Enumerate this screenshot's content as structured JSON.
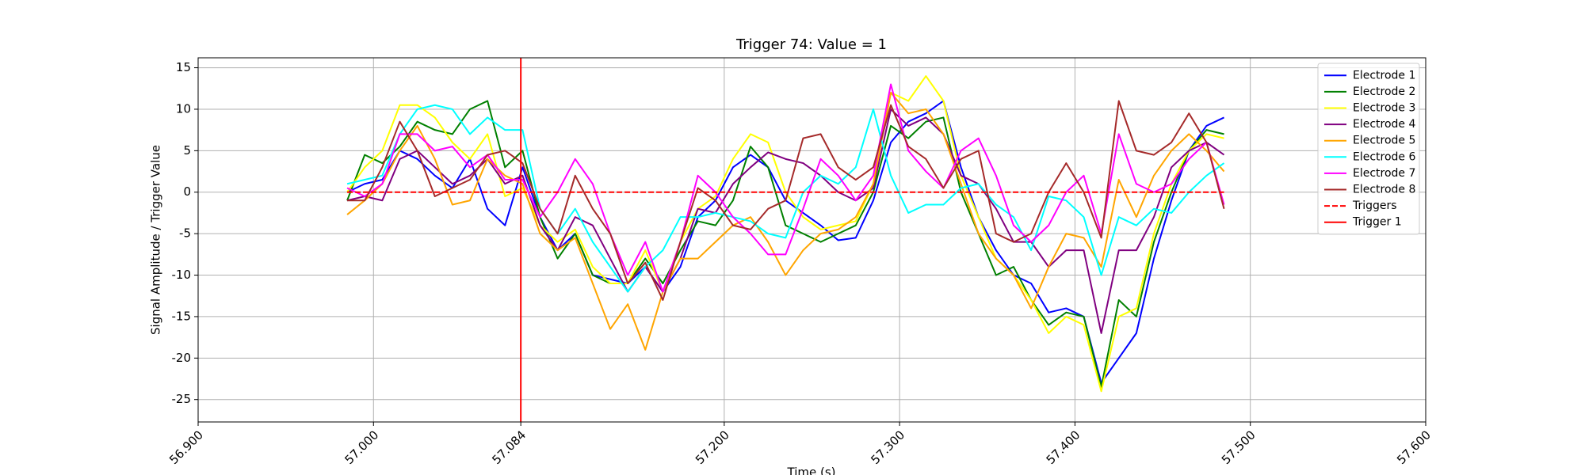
{
  "chart_data": {
    "type": "line",
    "title": "Trigger 74: Value = 1",
    "xlabel": "Time (s)",
    "ylabel": "Signal Amplitude / Trigger Value",
    "x": [
      56.985,
      56.995,
      57.005,
      57.015,
      57.025,
      57.035,
      57.045,
      57.055,
      57.065,
      57.075,
      57.085,
      57.095,
      57.105,
      57.115,
      57.125,
      57.135,
      57.145,
      57.155,
      57.165,
      57.175,
      57.185,
      57.195,
      57.205,
      57.215,
      57.225,
      57.235,
      57.245,
      57.255,
      57.265,
      57.275,
      57.285,
      57.295,
      57.305,
      57.315,
      57.325,
      57.335,
      57.345,
      57.355,
      57.365,
      57.375,
      57.385,
      57.395,
      57.405,
      57.415,
      57.425,
      57.435,
      57.445,
      57.455,
      57.465,
      57.475,
      57.485
    ],
    "series": [
      {
        "name": "Electrode 1",
        "color": "#0000ff",
        "values": [
          0,
          1,
          1.5,
          5,
          4,
          2,
          0.5,
          4,
          -2,
          -4,
          3,
          -3,
          -7,
          -5,
          -10,
          -10.5,
          -11,
          -9,
          -12,
          -9,
          -3,
          -1,
          3,
          4.5,
          3,
          -1,
          -2.5,
          -4,
          -5.8,
          -5.5,
          -1,
          6,
          8.5,
          9.5,
          11,
          3,
          -3,
          -7,
          -10,
          -11,
          -14.5,
          -14,
          -15,
          -23,
          -20,
          -17,
          -8,
          -1,
          5,
          8,
          9
        ]
      },
      {
        "name": "Electrode 2",
        "color": "#008000",
        "values": [
          -1,
          4.5,
          3.5,
          5.5,
          8.5,
          7.5,
          7,
          10,
          11,
          3,
          5,
          -3,
          -8,
          -5,
          -10,
          -11,
          -11,
          -8,
          -11,
          -7,
          -3.5,
          -4,
          -1,
          5.5,
          3,
          -4,
          -5,
          -6,
          -5,
          -4,
          0,
          8,
          6.5,
          8.5,
          9,
          0,
          -5,
          -10,
          -9,
          -13,
          -16,
          -14.5,
          -15,
          -23.5,
          -13,
          -15,
          -6,
          0,
          5,
          7.5,
          7
        ]
      },
      {
        "name": "Electrode 3",
        "color": "#ffff00",
        "values": [
          0,
          3,
          5,
          10.5,
          10.5,
          9,
          6,
          4,
          7,
          -0.5,
          0.5,
          -4,
          -6,
          -4.5,
          -9,
          -11,
          -11,
          -7,
          -12,
          -6,
          -2,
          -0.5,
          4,
          7,
          6,
          0,
          -3,
          -4.5,
          -4,
          -3.5,
          1,
          12,
          11,
          14,
          11,
          2,
          -3,
          -8,
          -10,
          -13,
          -17,
          -15,
          -16,
          -24,
          -15,
          -14,
          -5,
          1,
          5,
          7,
          6.5
        ]
      },
      {
        "name": "Electrode 4",
        "color": "#800080",
        "values": [
          -1,
          -0.5,
          -1,
          4,
          5,
          3,
          1,
          2,
          4,
          1,
          2,
          -4,
          -7,
          -3,
          -4,
          -8,
          -12,
          -9,
          -12,
          -8,
          -2,
          -2.5,
          1,
          3,
          4.8,
          4,
          3.5,
          2,
          0,
          -1,
          0.5,
          10,
          8,
          9,
          7,
          2,
          1,
          -2,
          -6,
          -6,
          -9,
          -7,
          -7,
          -17,
          -7,
          -7,
          -3,
          3,
          5,
          6,
          4.5
        ]
      },
      {
        "name": "Electrode 5",
        "color": "#ffa500",
        "values": [
          -2.7,
          -1,
          1,
          5,
          8,
          4,
          -1.5,
          -1,
          4,
          2,
          1,
          -5,
          -7,
          -5.5,
          -11,
          -16.5,
          -13.5,
          -19,
          -12,
          -8,
          -8,
          -6,
          -4,
          -3,
          -6,
          -10,
          -7,
          -5,
          -4.5,
          -3,
          1,
          12,
          9.5,
          10,
          7,
          1,
          -5,
          -8,
          -10,
          -14,
          -9,
          -5,
          -5.5,
          -9,
          1.5,
          -3,
          2,
          5,
          7,
          5,
          2.5
        ]
      },
      {
        "name": "Electrode 6",
        "color": "#00ffff",
        "values": [
          1,
          1.5,
          2,
          7,
          10,
          10.5,
          10,
          7,
          9,
          7.5,
          7.5,
          -2,
          -5,
          -2,
          -6,
          -9,
          -12,
          -9,
          -7,
          -3,
          -3,
          -2.5,
          -3,
          -3.5,
          -5,
          -5.5,
          0,
          2,
          1,
          3,
          10,
          2,
          -2.5,
          -1.5,
          -1.5,
          0.5,
          1,
          -1.5,
          -3,
          -7,
          -0.5,
          -1,
          -3,
          -10,
          -3,
          -4,
          -2,
          -2.5,
          0,
          2,
          3.5
        ]
      },
      {
        "name": "Electrode 7",
        "color": "#ff00ff",
        "values": [
          0.5,
          -0.5,
          1,
          7,
          7,
          5,
          5.5,
          3,
          4.5,
          1.5,
          1.5,
          -3,
          0,
          4,
          1,
          -5,
          -10,
          -6,
          -12,
          -6,
          2,
          0,
          -3,
          -5,
          -7.5,
          -7.5,
          -2,
          4,
          2,
          -1,
          2,
          13,
          5,
          2.5,
          0.5,
          5,
          6.5,
          2,
          -4,
          -6,
          -4,
          0,
          2,
          -5,
          7,
          1,
          0,
          1,
          4,
          6,
          -1.5
        ]
      },
      {
        "name": "Electrode 8",
        "color": "#a52a2a",
        "values": [
          -1,
          -1,
          3,
          8.5,
          5,
          -0.5,
          0.5,
          1.5,
          4.5,
          5,
          3.5,
          -2,
          -5,
          2,
          -2,
          -5,
          -11,
          -8.5,
          -13,
          -6,
          0.5,
          -1,
          -4,
          -4.5,
          -2,
          -1,
          6.5,
          7,
          3,
          1.5,
          3,
          10.5,
          5.5,
          4,
          0.5,
          4,
          5,
          -5,
          -6,
          -5,
          0,
          3.5,
          0,
          -5.5,
          11,
          5,
          4.5,
          6,
          9.5,
          6,
          -2
        ]
      },
      {
        "name": "Triggers",
        "color": "#ff0000",
        "dashed": true,
        "x": [
          56.985,
          57.485
        ],
        "values": [
          0,
          0
        ]
      }
    ],
    "vlines": [
      {
        "name": "Trigger 1",
        "color": "#ff0000",
        "x": 57.084
      }
    ],
    "xlim": [
      56.9,
      57.6
    ],
    "xticks": [
      {
        "value": 56.9,
        "label": "56.900"
      },
      {
        "value": 57.0,
        "label": "57.000"
      },
      {
        "value": 57.084,
        "label": "57.084"
      },
      {
        "value": 57.2,
        "label": "57.200"
      },
      {
        "value": 57.3,
        "label": "57.300"
      },
      {
        "value": 57.4,
        "label": "57.400"
      },
      {
        "value": 57.5,
        "label": "57.500"
      },
      {
        "value": 57.6,
        "label": "57.600"
      }
    ],
    "ylim": [
      -27.7,
      16.2
    ],
    "yticks": [
      -25,
      -20,
      -15,
      -10,
      -5,
      0,
      5,
      10,
      15
    ],
    "grid": true,
    "legend": "upper right"
  }
}
